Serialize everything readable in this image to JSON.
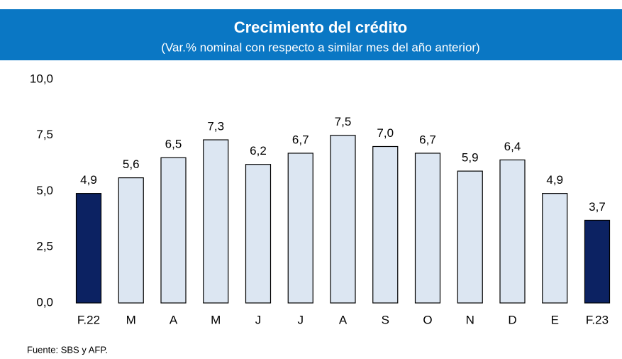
{
  "chart_data": {
    "type": "bar",
    "title": "Crecimiento del crédito",
    "subtitle": "(Var.% nominal con respecto a similar mes del año anterior)",
    "source": "Fuente: SBS y AFP.",
    "categories": [
      "F.22",
      "M",
      "A",
      "M",
      "J",
      "J",
      "A",
      "S",
      "O",
      "N",
      "D",
      "E",
      "F.23"
    ],
    "values": [
      4.9,
      5.6,
      6.5,
      7.3,
      6.2,
      6.7,
      7.5,
      7.0,
      6.7,
      5.9,
      6.4,
      4.9,
      3.7
    ],
    "value_labels": [
      "4,9",
      "5,6",
      "6,5",
      "7,3",
      "6,2",
      "6,7",
      "7,5",
      "7,0",
      "6,7",
      "5,9",
      "6,4",
      "4,9",
      "3,7"
    ],
    "colors": [
      "#0c2262",
      "#dce6f2",
      "#dce6f2",
      "#dce6f2",
      "#dce6f2",
      "#dce6f2",
      "#dce6f2",
      "#dce6f2",
      "#dce6f2",
      "#dce6f2",
      "#dce6f2",
      "#dce6f2",
      "#0c2262"
    ],
    "header_color": "#0a77c4",
    "ylim": [
      0,
      10
    ],
    "yticks": [
      {
        "value": 0,
        "label": "0,0"
      },
      {
        "value": 2.5,
        "label": "2,5"
      },
      {
        "value": 5,
        "label": "5,0"
      },
      {
        "value": 7.5,
        "label": "7,5"
      },
      {
        "value": 10,
        "label": "10,0"
      }
    ],
    "grid": false
  }
}
